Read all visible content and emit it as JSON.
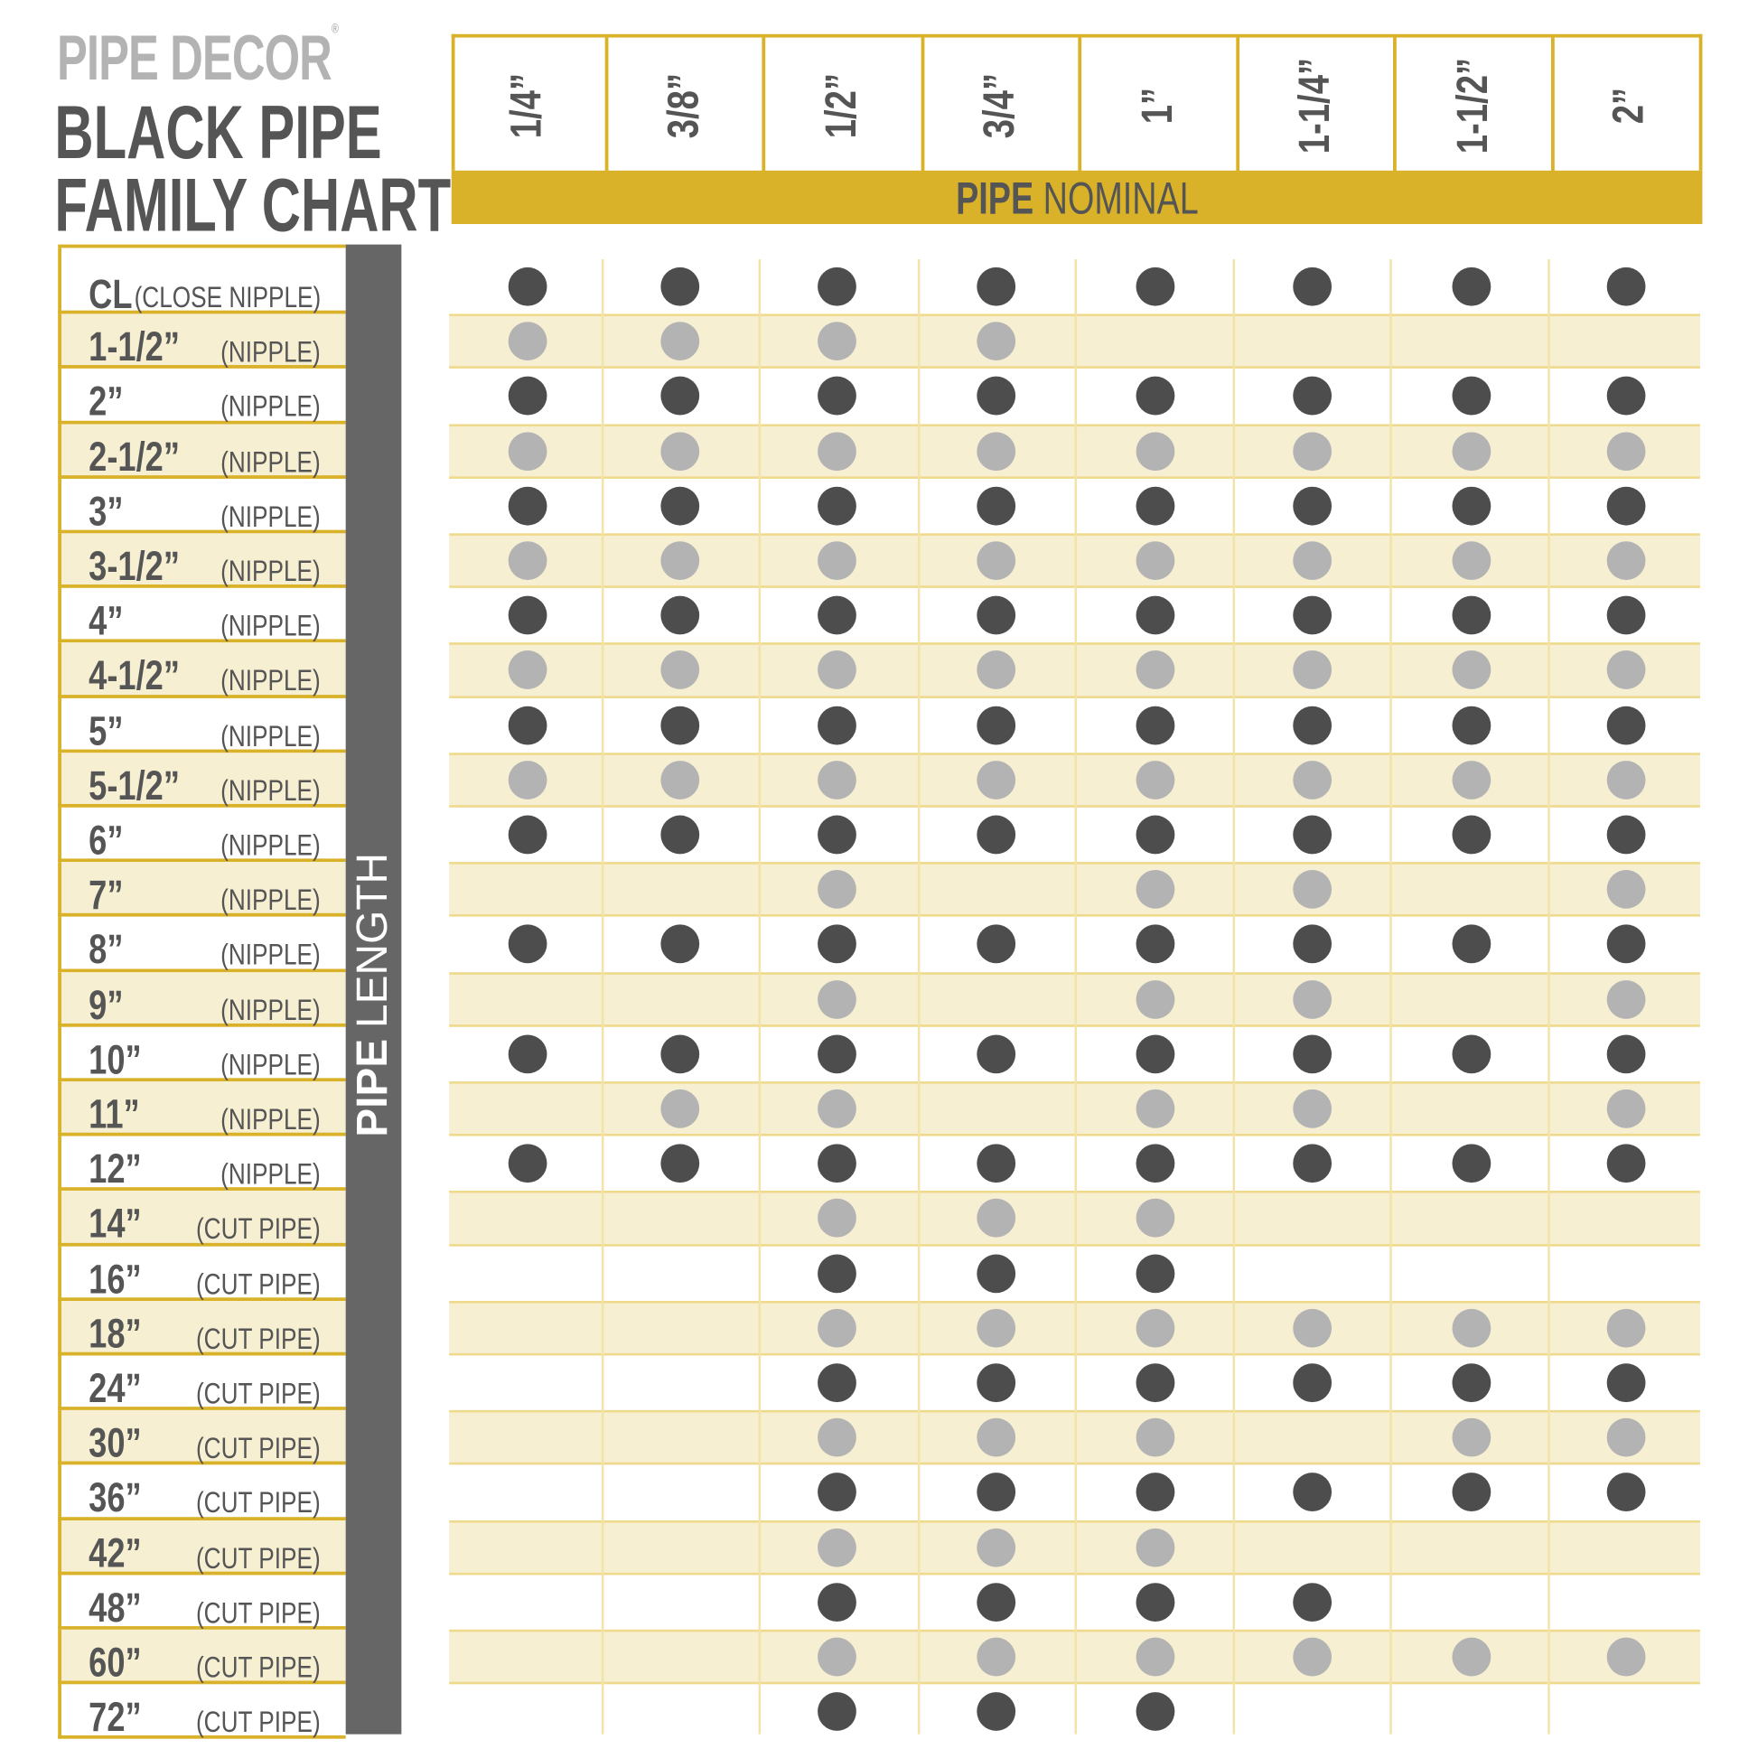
{
  "brand": "PIPE DECOR",
  "brand_mark": "®",
  "title_line1": "BLACK PIPE",
  "title_line2": "FAMILY CHART",
  "colors": {
    "accent": "#d9b229",
    "tan_row": "#f6efd2",
    "dark_dot": "#4d4d4d",
    "light_dot": "#b3b3b3",
    "sidebar": "#666666"
  },
  "chart_data": {
    "type": "table",
    "column_axis_label_bold": "PIPE",
    "column_axis_label": "NOMINAL",
    "row_axis_label_bold": "PIPE",
    "row_axis_label": "LENGTH",
    "columns": [
      "1/4”",
      "3/8”",
      "1/2”",
      "3/4”",
      "1”",
      "1-1/4”",
      "1-1/2”",
      "2”"
    ],
    "rows": [
      {
        "length": "CL",
        "type": "(CLOSE NIPPLE)",
        "available": [
          1,
          1,
          1,
          1,
          1,
          1,
          1,
          1
        ]
      },
      {
        "length": "1-1/2”",
        "type": "(NIPPLE)",
        "available": [
          1,
          1,
          1,
          1,
          0,
          0,
          0,
          0
        ]
      },
      {
        "length": "2”",
        "type": "(NIPPLE)",
        "available": [
          1,
          1,
          1,
          1,
          1,
          1,
          1,
          1
        ]
      },
      {
        "length": "2-1/2”",
        "type": "(NIPPLE)",
        "available": [
          1,
          1,
          1,
          1,
          1,
          1,
          1,
          1
        ]
      },
      {
        "length": "3”",
        "type": "(NIPPLE)",
        "available": [
          1,
          1,
          1,
          1,
          1,
          1,
          1,
          1
        ]
      },
      {
        "length": "3-1/2”",
        "type": "(NIPPLE)",
        "available": [
          1,
          1,
          1,
          1,
          1,
          1,
          1,
          1
        ]
      },
      {
        "length": "4”",
        "type": "(NIPPLE)",
        "available": [
          1,
          1,
          1,
          1,
          1,
          1,
          1,
          1
        ]
      },
      {
        "length": "4-1/2”",
        "type": "(NIPPLE)",
        "available": [
          1,
          1,
          1,
          1,
          1,
          1,
          1,
          1
        ]
      },
      {
        "length": "5”",
        "type": "(NIPPLE)",
        "available": [
          1,
          1,
          1,
          1,
          1,
          1,
          1,
          1
        ]
      },
      {
        "length": "5-1/2”",
        "type": "(NIPPLE)",
        "available": [
          1,
          1,
          1,
          1,
          1,
          1,
          1,
          1
        ]
      },
      {
        "length": "6”",
        "type": "(NIPPLE)",
        "available": [
          1,
          1,
          1,
          1,
          1,
          1,
          1,
          1
        ]
      },
      {
        "length": "7”",
        "type": "(NIPPLE)",
        "available": [
          0,
          0,
          1,
          0,
          1,
          1,
          0,
          1
        ]
      },
      {
        "length": "8”",
        "type": "(NIPPLE)",
        "available": [
          1,
          1,
          1,
          1,
          1,
          1,
          1,
          1
        ]
      },
      {
        "length": "9”",
        "type": "(NIPPLE)",
        "available": [
          0,
          0,
          1,
          0,
          1,
          1,
          0,
          1
        ]
      },
      {
        "length": "10”",
        "type": "(NIPPLE)",
        "available": [
          1,
          1,
          1,
          1,
          1,
          1,
          1,
          1
        ]
      },
      {
        "length": "11”",
        "type": "(NIPPLE)",
        "available": [
          0,
          1,
          1,
          0,
          1,
          1,
          0,
          1
        ]
      },
      {
        "length": "12”",
        "type": "(NIPPLE)",
        "available": [
          1,
          1,
          1,
          1,
          1,
          1,
          1,
          1
        ]
      },
      {
        "length": "14”",
        "type": "(CUT PIPE)",
        "available": [
          0,
          0,
          1,
          1,
          1,
          0,
          0,
          0
        ]
      },
      {
        "length": "16”",
        "type": "(CUT PIPE)",
        "available": [
          0,
          0,
          1,
          1,
          1,
          0,
          0,
          0
        ]
      },
      {
        "length": "18”",
        "type": "(CUT PIPE)",
        "available": [
          0,
          0,
          1,
          1,
          1,
          1,
          1,
          1
        ]
      },
      {
        "length": "24”",
        "type": "(CUT PIPE)",
        "available": [
          0,
          0,
          1,
          1,
          1,
          1,
          1,
          1
        ]
      },
      {
        "length": "30”",
        "type": "(CUT PIPE)",
        "available": [
          0,
          0,
          1,
          1,
          1,
          0,
          1,
          1
        ]
      },
      {
        "length": "36”",
        "type": "(CUT PIPE)",
        "available": [
          0,
          0,
          1,
          1,
          1,
          1,
          1,
          1
        ]
      },
      {
        "length": "42”",
        "type": "(CUT PIPE)",
        "available": [
          0,
          0,
          1,
          1,
          1,
          0,
          0,
          0
        ]
      },
      {
        "length": "48”",
        "type": "(CUT PIPE)",
        "available": [
          0,
          0,
          1,
          1,
          1,
          1,
          0,
          0
        ]
      },
      {
        "length": "60”",
        "type": "(CUT PIPE)",
        "available": [
          0,
          0,
          1,
          1,
          1,
          1,
          1,
          1
        ]
      },
      {
        "length": "72”",
        "type": "(CUT PIPE)",
        "available": [
          0,
          0,
          1,
          1,
          1,
          0,
          0,
          0
        ]
      }
    ]
  }
}
